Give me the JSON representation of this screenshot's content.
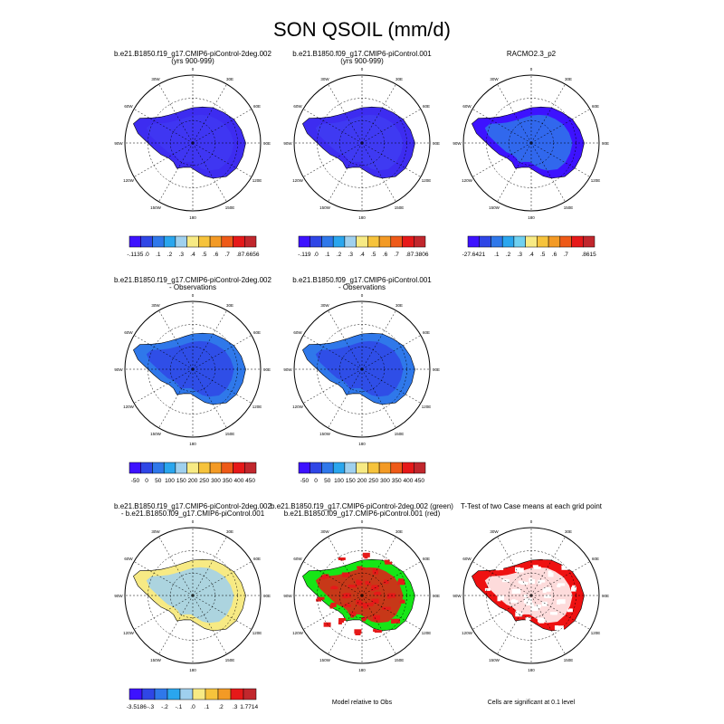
{
  "title": "SON QSOIL (mm/d)",
  "palettes": {
    "qsoil": [
      "#3d12ff",
      "#2f46e6",
      "#2f78ea",
      "#2aa6ee",
      "#9fd0ee",
      "#f7ea84",
      "#f6c33c",
      "#f39a25",
      "#ee5a18",
      "#e61919",
      "#c1272d"
    ],
    "obs": [
      "#3d12ff",
      "#2f46e6",
      "#2f78ea",
      "#2aa6ee",
      "#9fd0ee",
      "#f7ea84",
      "#f6c33c",
      "#f39a25",
      "#ee5a18",
      "#e61919",
      "#c1272d"
    ],
    "diff": [
      "#3d12ff",
      "#2f46e6",
      "#2f78ea",
      "#2aa6ee",
      "#9fd0ee",
      "#f7ea84",
      "#f6c33c",
      "#f39a25",
      "#e61919",
      "#c1272d"
    ],
    "racmo": [
      "#3d12ff",
      "#2f46e6",
      "#2f78ea",
      "#2aa6ee",
      "#6fd0f0",
      "#f7ea84",
      "#f6c33c",
      "#f39a25",
      "#ee5a18",
      "#e61919",
      "#c1272d"
    ]
  },
  "map_labels": {
    "top": "0",
    "bottom": "180",
    "left": "90W",
    "right": "90E",
    "upper_left_a": "30W",
    "upper_left_b": "60W",
    "lower_left_a": "120W",
    "lower_left_b": "150W",
    "upper_right_a": "30E",
    "upper_right_b": "60E",
    "lower_right_a": "120E",
    "lower_right_b": "150E"
  },
  "panels": [
    {
      "row": 0,
      "col": 0,
      "title_line1": "b.e21.B1850.f19_g17.CMIP6-piControl-2deg.002",
      "title_line2": "(yrs 900-999)",
      "fill": "#3d2cf0",
      "interior": "#3f38f2",
      "coast": "#2aa6ee",
      "colorbar": {
        "palette": "qsoil",
        "labels": [
          "-.1135",
          ".0",
          ".1",
          ".2",
          ".3",
          ".4",
          ".5",
          ".6",
          ".7",
          ".8",
          "7.6656"
        ]
      }
    },
    {
      "row": 0,
      "col": 1,
      "title_line1": "b.e21.B1850.f09_g17.CMIP6-piControl.001",
      "title_line2": "(yrs 900-999)",
      "fill": "#3d2cf0",
      "interior": "#3f3df2",
      "coast": "#2aa6ee",
      "colorbar": {
        "palette": "qsoil",
        "labels": [
          "-.119",
          ".0",
          ".1",
          ".2",
          ".3",
          ".4",
          ".5",
          ".6",
          ".7",
          ".8",
          "7.3806"
        ]
      }
    },
    {
      "row": 0,
      "col": 2,
      "title_line1": "RACMO2.3_p2",
      "title_line2": "",
      "fill": "#3d12ff",
      "interior": "#2f78ea",
      "coast": "#2aa6ee",
      "colorbar": {
        "palette": "racmo",
        "labels": [
          "-27.6421",
          "",
          ".1",
          ".2",
          ".3",
          ".4",
          ".5",
          ".6",
          ".7",
          "",
          ".8615"
        ]
      }
    },
    {
      "row": 1,
      "col": 0,
      "title_line1": "b.e21.B1850.f19_g17.CMIP6-piControl-2deg.002",
      "title_line2": "- Observations",
      "fill": "#2f78ea",
      "interior": "#2f46e6",
      "coast": "#2f78ea",
      "colorbar": {
        "palette": "obs",
        "labels": [
          "-50",
          "0",
          "50",
          "100",
          "150",
          "200",
          "250",
          "300",
          "350",
          "400",
          "450"
        ]
      }
    },
    {
      "row": 1,
      "col": 1,
      "title_line1": "b.e21.B1850.f09_g17.CMIP6-piControl.001",
      "title_line2": "- Observations",
      "fill": "#2f78ea",
      "interior": "#2f46e6",
      "coast": "#2f78ea",
      "colorbar": {
        "palette": "obs",
        "labels": [
          "-50",
          "0",
          "50",
          "100",
          "150",
          "200",
          "250",
          "300",
          "350",
          "400",
          "450"
        ]
      }
    },
    {
      "row": 2,
      "col": 0,
      "title_line1": "b.e21.B1850.f19_g17.CMIP6-piControl-2deg.002",
      "title_line2": "- b.e21.B1850.f09_g17.CMIP6-piControl.001",
      "fill": "#f7ea84",
      "interior": "#9fd0ee",
      "coast": "#2aa6ee",
      "colorbar": {
        "palette": "diff",
        "labels": [
          "-3.5186",
          "-.3",
          "-.2",
          "-.1",
          ".0",
          ".1",
          ".2",
          ".3",
          "1.7714"
        ]
      }
    },
    {
      "row": 2,
      "col": 1,
      "title_line1": "b.e21.B1850.f19_g17.CMIP6-piControl-2deg.002 (green)",
      "title_line2": "b.e21.B1850.f09_g17.CMIP6-piControl.001 (red)",
      "fill": "#16e616",
      "interior": "#e61919",
      "coast": "#e61919",
      "footer": "Model relative to Obs"
    },
    {
      "row": 2,
      "col": 2,
      "title_line1": "T-Test of two Case means at each grid point",
      "title_line2": "",
      "fill": "#ee1111",
      "interior": "#ffffff",
      "coast": "#ee1111",
      "footer": "Cells are significant at 0.1 level"
    }
  ]
}
